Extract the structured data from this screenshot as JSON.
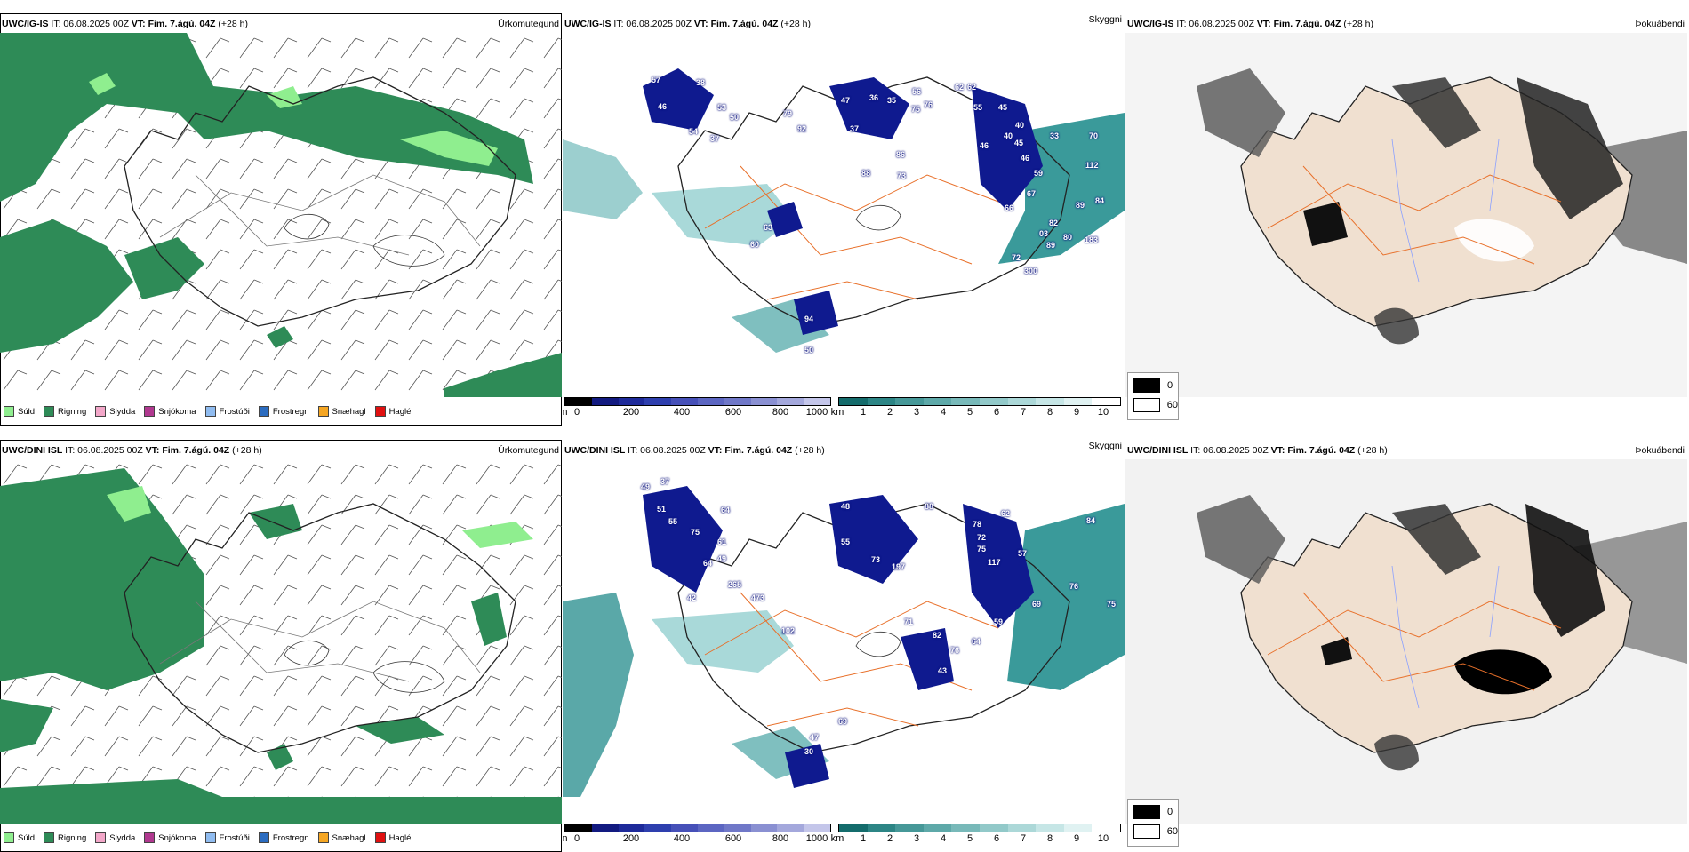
{
  "colors": {
    "rain": "#2e8b57",
    "drizzle": "#8fee8f",
    "sleet": "#f3a7c9",
    "snow": "#b0388f",
    "freezing_drizzle": "#90bcf0",
    "freezing_rain": "#2b6cc0",
    "graupel": "#f5a623",
    "hail": "#e01010",
    "cloud_low": "#0f1a8f",
    "visibility_low": "#3a9a9a",
    "land_tan": "#f0e0d0",
    "roads": "#e8702a"
  },
  "panels": [
    {
      "model": "UWC/IG-IS",
      "it": "IT: 06.08.2025 00Z",
      "vt": "VT: Fim. 7.ágú. 04Z",
      "lead": "(+28 h)",
      "title": "Úrkomutegund"
    },
    {
      "model": "UWC/IG-IS",
      "it": "IT: 06.08.2025 00Z",
      "vt": "VT: Fim. 7.ágú. 04Z",
      "lead": "(+28 h)",
      "title": "Skyggni"
    },
    {
      "model": "UWC/IG-IS",
      "it": "IT: 06.08.2025 00Z",
      "vt": "VT: Fim. 7.ágú. 04Z",
      "lead": "(+28 h)",
      "title": "Þokuábendi"
    },
    {
      "model": "UWC/DINI ISL",
      "it": "IT: 06.08.2025 00Z",
      "vt": "VT: Fim. 7.ágú. 04Z",
      "lead": "(+28 h)",
      "title": "Úrkomutegund"
    },
    {
      "model": "UWC/DINI ISL",
      "it": "IT: 06.08.2025 00Z",
      "vt": "VT: Fim. 7.ágú. 04Z",
      "lead": "(+28 h)",
      "title": "Skyggni"
    },
    {
      "model": "UWC/DINI ISL",
      "it": "IT: 06.08.2025 00Z",
      "vt": "VT: Fim. 7.ágú. 04Z",
      "lead": "(+28 h)",
      "title": "Þokuábendi"
    }
  ],
  "precip_legend": [
    "Súld",
    "Rigning",
    "Slydda",
    "Snjókoma",
    "Frostúði",
    "Frostregn",
    "Snæhagl",
    "Haglél"
  ],
  "cloud_bar": {
    "unit": "m",
    "ticks": [
      "0",
      "200",
      "400",
      "600",
      "800",
      "1000"
    ]
  },
  "vis_bar": {
    "unit": "km",
    "ticks": [
      "1",
      "2",
      "3",
      "4",
      "5",
      "6",
      "7",
      "8",
      "9",
      "10"
    ]
  },
  "fog_legend": [
    "0",
    "60"
  ],
  "labels_top": [
    "57",
    "38",
    "46",
    "53",
    "50",
    "54",
    "37",
    "79",
    "92",
    "47",
    "36",
    "35",
    "37",
    "56",
    "76",
    "75",
    "62",
    "62",
    "55",
    "45",
    "40",
    "40",
    "45",
    "33",
    "70",
    "46",
    "46",
    "112",
    "86",
    "88",
    "73",
    "59",
    "67",
    "66",
    "82",
    "89",
    "84",
    "63",
    "60",
    "03",
    "80",
    "183",
    "89",
    "300",
    "94",
    "50",
    "72"
  ],
  "labels_bottom": [
    "37",
    "49",
    "51",
    "55",
    "64",
    "75",
    "61",
    "49",
    "64",
    "48",
    "55",
    "88",
    "73",
    "197",
    "84",
    "62",
    "78",
    "72",
    "75",
    "117",
    "57",
    "76",
    "75",
    "265",
    "473",
    "102",
    "42",
    "69",
    "59",
    "71",
    "82",
    "76",
    "64",
    "43",
    "47",
    "30",
    "69"
  ]
}
